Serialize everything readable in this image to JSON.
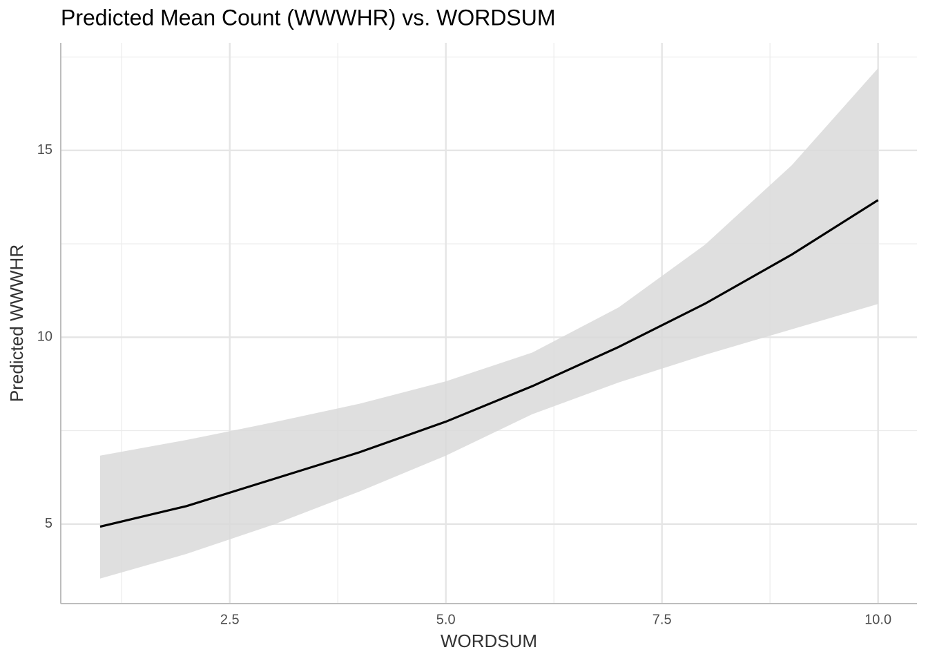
{
  "chart_data": {
    "type": "line",
    "title": "Predicted Mean Count (WWWHR) vs. WORDSUM",
    "x_label": "WORDSUM",
    "y_label": "Predicted WWWHR",
    "x": [
      1,
      2,
      3,
      4,
      5,
      6,
      7,
      8,
      9,
      10
    ],
    "series": [
      {
        "name": "Predicted",
        "color": "#000000",
        "values": [
          4.93,
          5.48,
          6.2,
          6.92,
          7.74,
          8.69,
          9.74,
          10.9,
          12.21,
          13.67
        ],
        "lower": [
          3.54,
          4.2,
          4.98,
          5.87,
          6.83,
          7.94,
          8.79,
          9.53,
          10.21,
          10.89
        ],
        "upper": [
          6.83,
          7.25,
          7.72,
          8.22,
          8.82,
          9.59,
          10.8,
          12.48,
          14.6,
          17.2
        ],
        "band_color": "#d9d9d9"
      }
    ],
    "xlim": [
      0.545,
      10.45
    ],
    "ylim": [
      2.87,
      17.88
    ],
    "xticks": [
      {
        "value": 2.5,
        "label": "2.5"
      },
      {
        "value": 5,
        "label": "5.0"
      },
      {
        "value": 7.5,
        "label": "7.5"
      },
      {
        "value": 10,
        "label": "10.0"
      }
    ],
    "yticks": [
      5,
      10,
      15
    ],
    "grid": true
  }
}
